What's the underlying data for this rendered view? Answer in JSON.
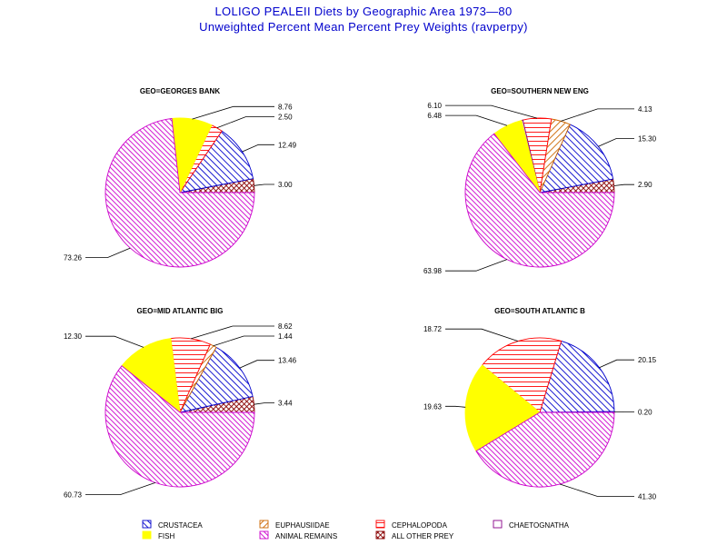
{
  "title": "LOLIGO PEALEII Diets by Geographic Area 1973—80",
  "subtitle": "Unweighted Percent Mean Percent Prey  Weights (ravperpy)",
  "chart_data": {
    "type": "pie",
    "categories": [
      "CRUSTACEA",
      "FISH",
      "EUPHAUSIIDAE",
      "ANIMAL REMAINS",
      "CEPHALOPODA",
      "ALL OTHER PREY",
      "CHAETOGNATHA"
    ],
    "colors": {
      "CRUSTACEA": "#0000cc",
      "FISH": "#ffff00",
      "EUPHAUSIIDAE": "#cc6600",
      "ANIMAL REMAINS": "#cc00cc",
      "CEPHALOPODA": "#ff0000",
      "ALL OTHER PREY": "#880000",
      "CHAETOGNATHA": "#880088"
    },
    "pies": [
      {
        "title": "GEO=GEORGES BANK",
        "slices": [
          {
            "category": "ALL OTHER PREY",
            "value": 3.0,
            "label": "3.00"
          },
          {
            "category": "CRUSTACEA",
            "value": 12.49,
            "label": "12.49"
          },
          {
            "category": "CEPHALOPODA",
            "value": 2.5,
            "label": "2.50"
          },
          {
            "category": "FISH",
            "value": 8.76,
            "label": "8.76"
          },
          {
            "category": "ANIMAL REMAINS",
            "value": 73.26,
            "label": "73.26"
          }
        ]
      },
      {
        "title": "GEO=SOUTHERN NEW ENG",
        "slices": [
          {
            "category": "ALL OTHER PREY",
            "value": 2.9,
            "label": "2.90"
          },
          {
            "category": "CRUSTACEA",
            "value": 15.3,
            "label": "15.30"
          },
          {
            "category": "EUPHAUSIIDAE",
            "value": 4.13,
            "label": "4.13"
          },
          {
            "category": "CEPHALOPODA",
            "value": 6.1,
            "label": "6.10"
          },
          {
            "category": "CHAETOGNATHA",
            "value": 0.3,
            "label": ""
          },
          {
            "category": "FISH",
            "value": 6.48,
            "label": "6.48"
          },
          {
            "category": "ANIMAL REMAINS",
            "value": 63.98,
            "label": "63.98"
          }
        ]
      },
      {
        "title": "GEO=MID ATLANTIC BIG",
        "slices": [
          {
            "category": "ALL OTHER PREY",
            "value": 3.44,
            "label": "3.44"
          },
          {
            "category": "CRUSTACEA",
            "value": 13.46,
            "label": "13.46"
          },
          {
            "category": "EUPHAUSIIDAE",
            "value": 1.44,
            "label": "1.44"
          },
          {
            "category": "CEPHALOPODA",
            "value": 8.62,
            "label": "8.62"
          },
          {
            "category": "FISH",
            "value": 12.3,
            "label": "12.30"
          },
          {
            "category": "ANIMAL REMAINS",
            "value": 60.73,
            "label": "60.73"
          }
        ]
      },
      {
        "title": "GEO=SOUTH ATLANTIC B",
        "slices": [
          {
            "category": "ALL OTHER PREY",
            "value": 0.2,
            "label": "0.20"
          },
          {
            "category": "CRUSTACEA",
            "value": 20.15,
            "label": "20.15"
          },
          {
            "category": "CEPHALOPODA",
            "value": 18.72,
            "label": "18.72"
          },
          {
            "category": "FISH",
            "value": 19.63,
            "label": "19.63"
          },
          {
            "category": "ANIMAL REMAINS",
            "value": 41.3,
            "label": "41.30"
          }
        ]
      }
    ],
    "legend": {
      "placement": "bottom",
      "entries": [
        "CRUSTACEA",
        "EUPHAUSIIDAE",
        "CEPHALOPODA",
        "CHAETOGNATHA",
        "FISH",
        "ANIMAL REMAINS",
        "ALL OTHER PREY"
      ]
    }
  }
}
